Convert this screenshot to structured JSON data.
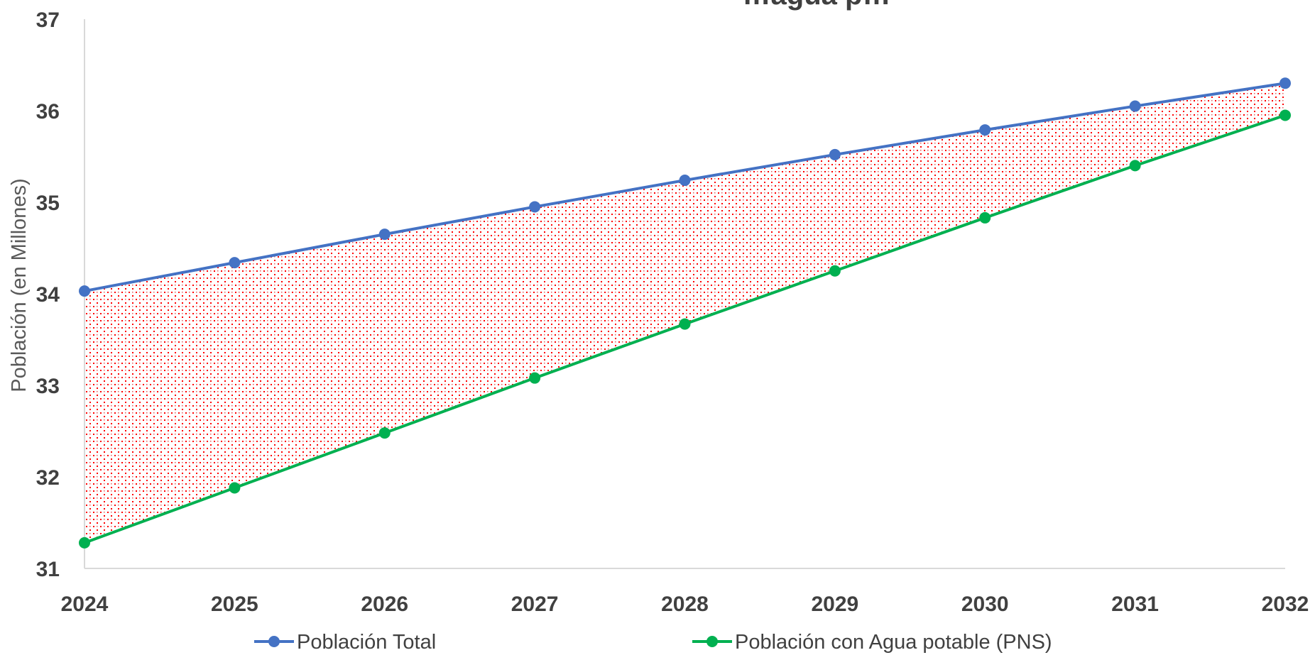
{
  "chart_data": {
    "type": "line",
    "title": "",
    "title_partial": "…agua p…",
    "xlabel": "",
    "ylabel": "Población (en Millones)",
    "x": [
      "2024",
      "2025",
      "2026",
      "2027",
      "2028",
      "2029",
      "2030",
      "2031",
      "2032"
    ],
    "ylim": [
      31,
      37
    ],
    "yticks": [
      "31",
      "32",
      "33",
      "34",
      "35",
      "36",
      "37"
    ],
    "grid": false,
    "legend_position": "bottom",
    "series": [
      {
        "name": "Población Total",
        "color": "#4472C4",
        "values": [
          34.03,
          34.34,
          34.65,
          34.95,
          35.24,
          35.52,
          35.79,
          36.05,
          36.3
        ]
      },
      {
        "name": "Población con Agua potable (PNS)",
        "color": "#00B050",
        "values": [
          31.28,
          31.88,
          32.48,
          33.08,
          33.67,
          34.25,
          34.83,
          35.4,
          35.95
        ]
      }
    ],
    "fill_between": {
      "color": "#FF0000",
      "pattern": "dotted"
    }
  }
}
